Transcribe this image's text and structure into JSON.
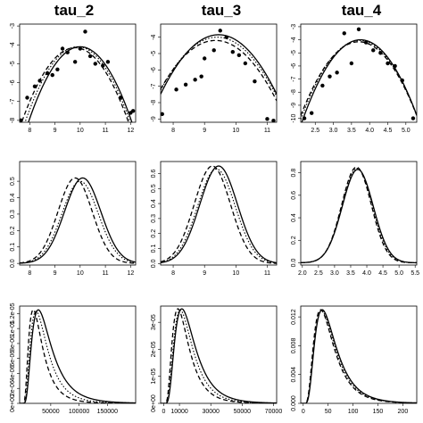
{
  "titles": [
    "tau_2",
    "tau_3",
    "tau_4"
  ],
  "chart_data": [
    {
      "type": "scatter",
      "row": 0,
      "col": 0,
      "xlim": [
        7.6,
        12.2
      ],
      "ylim": [
        -8.1,
        -2.9
      ],
      "xticks": [
        "8",
        "9",
        "10",
        "11",
        "12"
      ],
      "xtick_values": [
        8,
        9,
        10,
        11,
        12
      ],
      "yticks": [
        "-8",
        "-7",
        "-6",
        "-5",
        "-4",
        "-3"
      ],
      "ytick_values": [
        -8,
        -7,
        -6,
        -5,
        -4,
        -3
      ],
      "points": [
        [
          7.65,
          -8.0
        ],
        [
          7.9,
          -6.8
        ],
        [
          8.2,
          -6.2
        ],
        [
          8.4,
          -5.9
        ],
        [
          8.7,
          -5.5
        ],
        [
          8.9,
          -5.6
        ],
        [
          9.1,
          -5.3
        ],
        [
          9.3,
          -4.2
        ],
        [
          9.5,
          -4.4
        ],
        [
          9.8,
          -4.9
        ],
        [
          10.0,
          -4.2
        ],
        [
          10.2,
          -3.3
        ],
        [
          10.4,
          -4.6
        ],
        [
          10.6,
          -5.0
        ],
        [
          10.9,
          -5.1
        ],
        [
          11.1,
          -4.9
        ],
        [
          11.6,
          -6.8
        ],
        [
          12.0,
          -7.6
        ],
        [
          12.1,
          -7.5
        ]
      ],
      "curves": [
        {
          "style": "solid",
          "vertex": [
            10.0,
            -4.1
          ],
          "a": 0.95
        },
        {
          "style": "dashed",
          "vertex": [
            9.8,
            -4.15
          ],
          "a": 0.88
        },
        {
          "style": "dotdash",
          "vertex": [
            9.9,
            -4.1
          ],
          "a": 0.92
        }
      ]
    },
    {
      "type": "scatter",
      "row": 0,
      "col": 1,
      "xlim": [
        7.6,
        11.3
      ],
      "ylim": [
        -9.2,
        -3.2
      ],
      "xticks": [
        "8",
        "9",
        "10",
        "11"
      ],
      "xtick_values": [
        8,
        9,
        10,
        11
      ],
      "yticks": [
        "-9",
        "-8",
        "-7",
        "-6",
        "-5",
        "-4"
      ],
      "ytick_values": [
        -9,
        -8,
        -7,
        -6,
        -5,
        -4
      ],
      "points": [
        [
          7.65,
          -8.7
        ],
        [
          8.1,
          -7.2
        ],
        [
          8.4,
          -6.9
        ],
        [
          8.7,
          -6.6
        ],
        [
          8.9,
          -6.4
        ],
        [
          9.0,
          -5.3
        ],
        [
          9.3,
          -4.8
        ],
        [
          9.5,
          -3.6
        ],
        [
          9.7,
          -4.0
        ],
        [
          9.9,
          -4.9
        ],
        [
          10.1,
          -5.1
        ],
        [
          10.3,
          -5.6
        ],
        [
          10.6,
          -6.7
        ],
        [
          11.0,
          -9.0
        ],
        [
          11.2,
          -9.1
        ]
      ],
      "curves": [
        {
          "style": "solid",
          "vertex": [
            9.45,
            -3.85
          ],
          "a": 1.06
        },
        {
          "style": "dashed",
          "vertex": [
            9.35,
            -4.2
          ],
          "a": 0.97
        },
        {
          "style": "dotdash",
          "vertex": [
            9.4,
            -4.0
          ],
          "a": 1.0
        }
      ]
    },
    {
      "type": "scatter",
      "row": 0,
      "col": 2,
      "xlim": [
        2.1,
        5.3
      ],
      "ylim": [
        -10.3,
        -2.8
      ],
      "xticks": [
        "2.5",
        "3.0",
        "3.5",
        "4.0",
        "4.5",
        "5.0"
      ],
      "xtick_values": [
        2.5,
        3.0,
        3.5,
        4.0,
        4.5,
        5.0
      ],
      "yticks": [
        "-10",
        "-9",
        "-8",
        "-7",
        "-6",
        "-5",
        "-4",
        "-3"
      ],
      "ytick_values": [
        -10,
        -9,
        -8,
        -7,
        -6,
        -5,
        -4,
        -3
      ],
      "points": [
        [
          2.2,
          -10.0
        ],
        [
          2.4,
          -9.6
        ],
        [
          2.7,
          -7.5
        ],
        [
          2.9,
          -6.8
        ],
        [
          3.1,
          -6.5
        ],
        [
          3.3,
          -3.5
        ],
        [
          3.5,
          -5.8
        ],
        [
          3.7,
          -3.2
        ],
        [
          3.9,
          -4.2
        ],
        [
          4.1,
          -4.8
        ],
        [
          4.3,
          -5.0
        ],
        [
          4.5,
          -5.8
        ],
        [
          4.7,
          -6.0
        ],
        [
          4.9,
          -7.1
        ],
        [
          5.2,
          -10.0
        ]
      ],
      "curves": [
        {
          "style": "solid",
          "vertex": [
            3.75,
            -4.0
          ],
          "a": 2.4
        },
        {
          "style": "dashed",
          "vertex": [
            3.7,
            -4.15
          ],
          "a": 2.2
        },
        {
          "style": "dotdash",
          "vertex": [
            3.72,
            -4.05
          ],
          "a": 2.3
        }
      ]
    },
    {
      "type": "line",
      "row": 1,
      "col": 0,
      "xlim": [
        7.6,
        12.2
      ],
      "ylim": [
        -0.01,
        0.62
      ],
      "xticks": [
        "8",
        "9",
        "10",
        "11",
        "12"
      ],
      "xtick_values": [
        8,
        9,
        10,
        11,
        12
      ],
      "yticks": [
        "0.0",
        "0.1",
        "0.2",
        "0.3",
        "0.4",
        "0.5"
      ],
      "ytick_values": [
        0,
        0.1,
        0.2,
        0.3,
        0.4,
        0.5
      ],
      "curves": [
        {
          "style": "solid",
          "kind": "gauss",
          "mu": 10.1,
          "sigma": 0.72,
          "peak": 0.52
        },
        {
          "style": "dashed",
          "kind": "gauss",
          "mu": 9.8,
          "sigma": 0.68,
          "peak": 0.52
        },
        {
          "style": "dotdash",
          "kind": "gauss",
          "mu": 10.0,
          "sigma": 0.72,
          "peak": 0.5
        }
      ]
    },
    {
      "type": "line",
      "row": 1,
      "col": 1,
      "xlim": [
        7.6,
        11.3
      ],
      "ylim": [
        -0.01,
        0.68
      ],
      "xticks": [
        "8",
        "9",
        "10",
        "11"
      ],
      "xtick_values": [
        8,
        9,
        10,
        11
      ],
      "yticks": [
        "0.0",
        "0.1",
        "0.2",
        "0.3",
        "0.4",
        "0.5",
        "0.6"
      ],
      "ytick_values": [
        0,
        0.1,
        0.2,
        0.3,
        0.4,
        0.5,
        0.6
      ],
      "curves": [
        {
          "style": "solid",
          "kind": "gauss",
          "mu": 9.45,
          "sigma": 0.6,
          "peak": 0.65
        },
        {
          "style": "dashed",
          "kind": "gauss",
          "mu": 9.25,
          "sigma": 0.58,
          "peak": 0.65
        },
        {
          "style": "dotdash",
          "kind": "gauss",
          "mu": 9.38,
          "sigma": 0.6,
          "peak": 0.63
        }
      ]
    },
    {
      "type": "line",
      "row": 1,
      "col": 2,
      "xlim": [
        1.95,
        5.55
      ],
      "ylim": [
        -0.02,
        0.9
      ],
      "xticks": [
        "2.0",
        "2.5",
        "3.0",
        "3.5",
        "4.0",
        "4.5",
        "5.0",
        "5.5"
      ],
      "xtick_values": [
        2.0,
        2.5,
        3.0,
        3.5,
        4.0,
        4.5,
        5.0,
        5.5
      ],
      "yticks": [
        "0.0",
        "0.2",
        "0.4",
        "0.6",
        "0.8"
      ],
      "ytick_values": [
        0,
        0.2,
        0.4,
        0.6,
        0.8
      ],
      "curves": [
        {
          "style": "solid",
          "kind": "gauss",
          "mu": 3.72,
          "sigma": 0.48,
          "peak": 0.83
        },
        {
          "style": "dashed",
          "kind": "gauss",
          "mu": 3.68,
          "sigma": 0.46,
          "peak": 0.85
        },
        {
          "style": "dotdash",
          "kind": "gauss",
          "mu": 3.7,
          "sigma": 0.47,
          "peak": 0.84
        }
      ]
    },
    {
      "type": "line",
      "row": 2,
      "col": 0,
      "xlim": [
        -5000,
        200000
      ],
      "ylim": [
        0,
        1.3e-05
      ],
      "xticks": [
        "50000",
        "100000",
        "150000"
      ],
      "xtick_values": [
        50000,
        100000,
        150000
      ],
      "yticks": [
        "0e+00",
        "2e-06",
        "4e-06",
        "6e-06",
        "8e-06",
        "1e-05",
        "1.2e-05"
      ],
      "ytick_values": [
        0,
        2e-06,
        4e-06,
        6e-06,
        8e-06,
        1e-05,
        1.2e-05
      ],
      "curves": [
        {
          "style": "solid",
          "kind": "lognorm",
          "mode": 28000,
          "peak": 1.25e-05,
          "s": 0.6
        },
        {
          "style": "dashed",
          "kind": "lognorm",
          "mode": 19000,
          "peak": 1.25e-05,
          "s": 0.62
        },
        {
          "style": "dotdash",
          "kind": "lognorm",
          "mode": 24000,
          "peak": 1.23e-05,
          "s": 0.6
        }
      ]
    },
    {
      "type": "line",
      "row": 2,
      "col": 1,
      "xlim": [
        -2000,
        72000
      ],
      "ylim": [
        0,
        3.6e-05
      ],
      "xticks": [
        "0",
        "10000",
        "30000",
        "50000",
        "70000"
      ],
      "xtick_values": [
        0,
        10000,
        30000,
        50000,
        70000
      ],
      "yticks": [
        "0e+00",
        "1e-05",
        "2e-05",
        "3e-05"
      ],
      "ytick_values": [
        0,
        1e-05,
        2e-05,
        3e-05
      ],
      "curves": [
        {
          "style": "solid",
          "kind": "lognorm",
          "mode": 11500,
          "peak": 3.5e-05,
          "s": 0.55
        },
        {
          "style": "dashed",
          "kind": "lognorm",
          "mode": 9000,
          "peak": 3.5e-05,
          "s": 0.57
        },
        {
          "style": "dotdash",
          "kind": "lognorm",
          "mode": 10500,
          "peak": 3.45e-05,
          "s": 0.55
        }
      ]
    },
    {
      "type": "line",
      "row": 2,
      "col": 2,
      "xlim": [
        -5,
        228
      ],
      "ylim": [
        0,
        0.0135
      ],
      "xticks": [
        "0",
        "50",
        "100",
        "150",
        "200"
      ],
      "xtick_values": [
        0,
        50,
        100,
        150,
        200
      ],
      "yticks": [
        "0.000",
        "0.004",
        "0.008",
        "0.012"
      ],
      "ytick_values": [
        0,
        0.004,
        0.008,
        0.012
      ],
      "curves": [
        {
          "style": "solid",
          "kind": "lognorm",
          "mode": 38,
          "peak": 0.013,
          "s": 0.55
        },
        {
          "style": "dashed",
          "kind": "lognorm",
          "mode": 35,
          "peak": 0.013,
          "s": 0.56
        },
        {
          "style": "dotdash",
          "kind": "lognorm",
          "mode": 37,
          "peak": 0.0128,
          "s": 0.55
        }
      ]
    }
  ]
}
